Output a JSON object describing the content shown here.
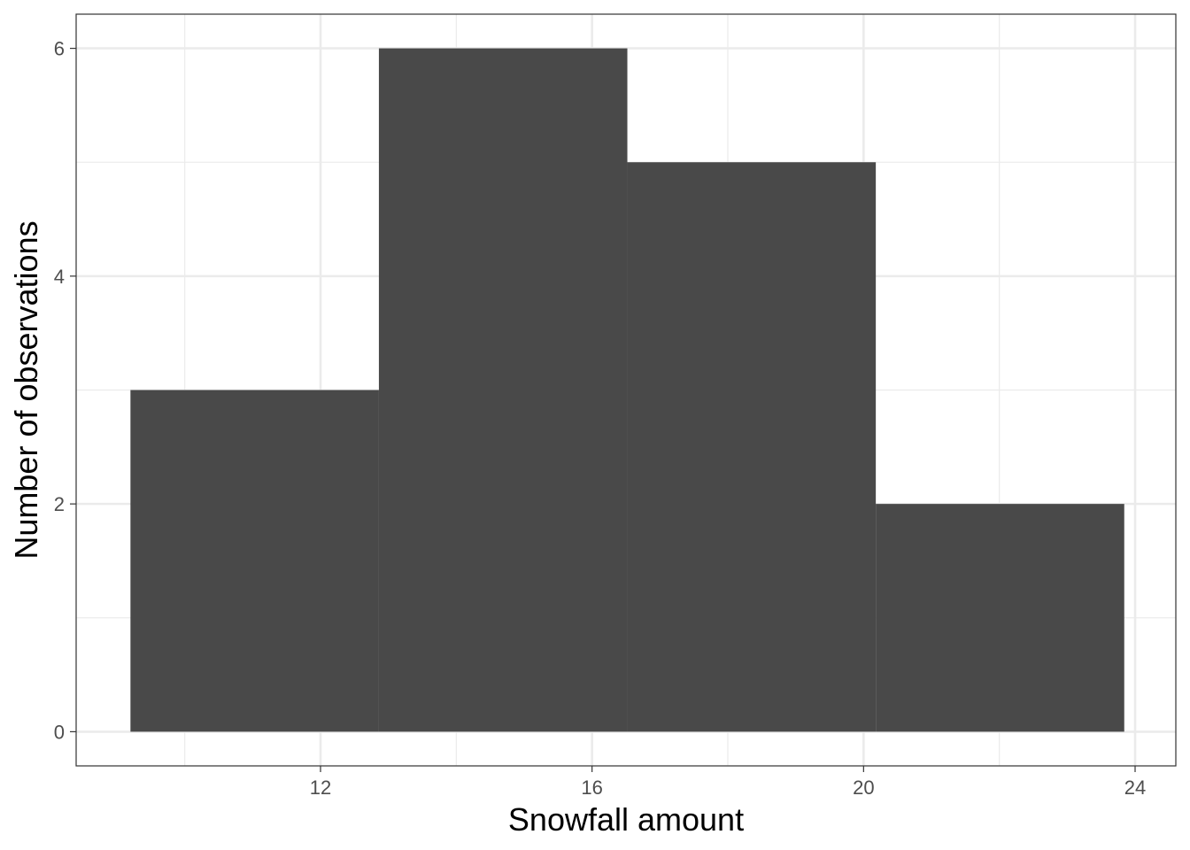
{
  "chart_data": {
    "type": "bar",
    "subtype": "histogram",
    "title": "",
    "xlabel": "Snowfall amount",
    "ylabel": "Number of observations",
    "bins": [
      {
        "start": 9.2,
        "end": 12.86,
        "count": 3
      },
      {
        "start": 12.86,
        "end": 16.52,
        "count": 6
      },
      {
        "start": 16.52,
        "end": 20.18,
        "count": 5
      },
      {
        "start": 20.18,
        "end": 23.84,
        "count": 2
      }
    ],
    "xlim": [
      8.4,
      24.6
    ],
    "ylim": [
      -0.3,
      6.3
    ],
    "x_ticks": [
      12,
      16,
      20,
      24
    ],
    "x_minor_ticks": [
      10,
      14,
      18,
      22
    ],
    "y_ticks": [
      0,
      2,
      4,
      6
    ],
    "y_minor_ticks": [
      1,
      3,
      5
    ],
    "x_tick_labels": [
      "12",
      "16",
      "20",
      "24"
    ],
    "y_tick_labels": [
      "0",
      "2",
      "4",
      "6"
    ],
    "bar_color": "#494949",
    "grid": true,
    "grid_color": "#ebebeb",
    "panel_border_color": "#333333",
    "background": "#ffffff",
    "legend": "none"
  }
}
